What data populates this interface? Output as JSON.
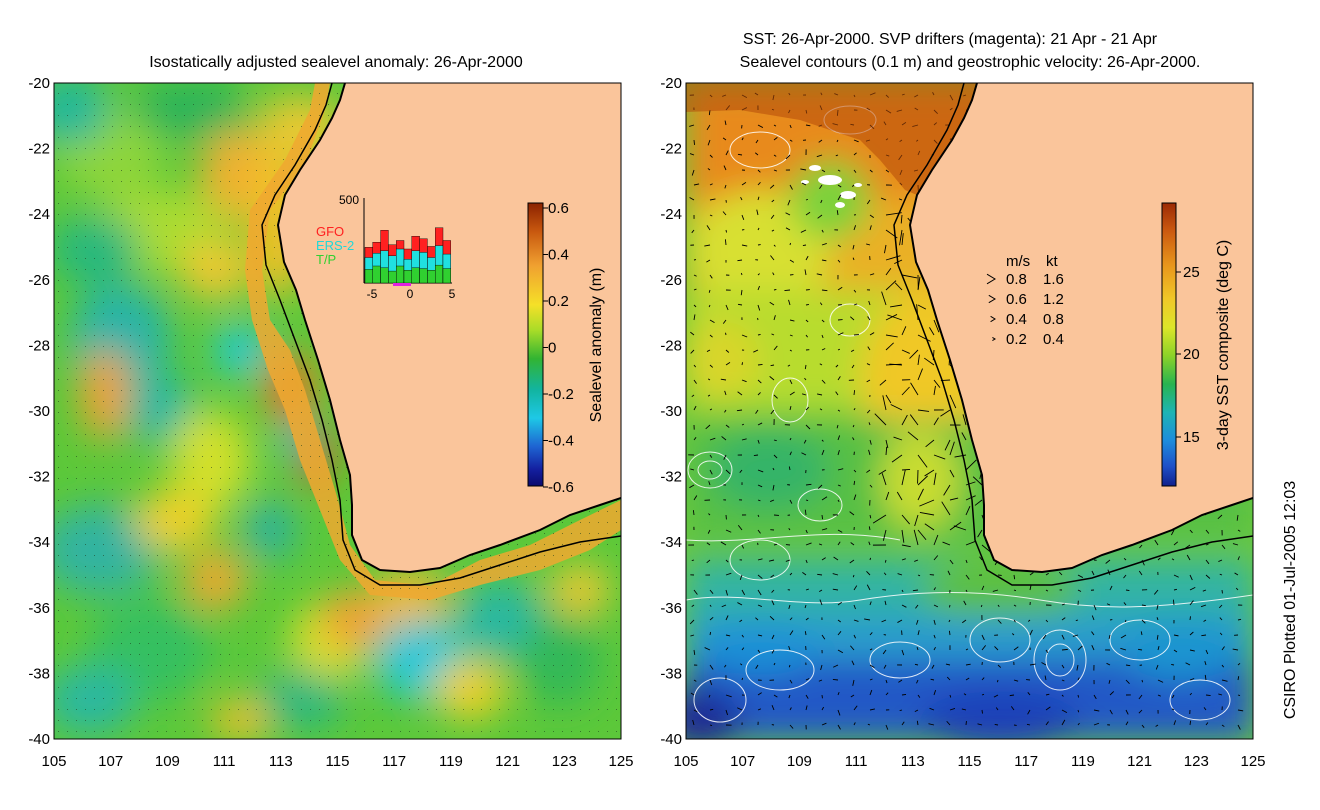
{
  "left_panel": {
    "title": "Isostatically adjusted sealevel anomaly: 26-Apr-2000",
    "colorbar": {
      "label": "Sealevel anomaly (m)",
      "ticks": [
        "0.6",
        "0.4",
        "0.2",
        "0",
        "-0.2",
        "-0.4",
        "-0.6"
      ],
      "colors": [
        "#8b2200",
        "#c8580f",
        "#f0a030",
        "#f5e028",
        "#a8dc28",
        "#32b432",
        "#12b4a0",
        "#1ec8e6",
        "#1e64d2",
        "#1420a0",
        "#0a0a6e"
      ]
    },
    "inset": {
      "ymax_label": "500",
      "legend": [
        {
          "label": "GFO",
          "color": "#ff2020"
        },
        {
          "label": "ERS-2",
          "color": "#20e0e0"
        },
        {
          "label": "T/P",
          "color": "#30d030"
        }
      ],
      "xticks": [
        "-5",
        "0",
        "5"
      ],
      "bars_total": [
        0.42,
        0.48,
        0.62,
        0.45,
        0.5,
        0.4,
        0.55,
        0.52,
        0.43,
        0.65,
        0.5
      ],
      "bars_ers": [
        0.3,
        0.35,
        0.38,
        0.32,
        0.4,
        0.28,
        0.38,
        0.36,
        0.3,
        0.44,
        0.34
      ],
      "bars_tp": [
        0.16,
        0.2,
        0.18,
        0.14,
        0.2,
        0.15,
        0.18,
        0.17,
        0.15,
        0.21,
        0.17
      ]
    }
  },
  "right_panel": {
    "title_line1": "SST: 26-Apr-2000. SVP drifters (magenta): 21 Apr - 21 Apr",
    "title_line2": "Sealevel contours (0.1 m) and geostrophic velocity: 26-Apr-2000.",
    "colorbar": {
      "label": "3-day SST composite (deg C)",
      "ticks": [
        "25",
        "20",
        "15"
      ],
      "colors": [
        "#9b2a05",
        "#cc5a10",
        "#e8961c",
        "#f0c828",
        "#dce628",
        "#8cd228",
        "#28b450",
        "#1eb4b4",
        "#1e8cdc",
        "#1e50c8",
        "#10208c"
      ]
    },
    "velocity_legend": {
      "header_ms": "m/s",
      "header_kt": "kt",
      "rows": [
        {
          "ms": "0.8",
          "kt": "1.6"
        },
        {
          "ms": "0.6",
          "kt": "1.2"
        },
        {
          "ms": "0.4",
          "kt": "0.8"
        },
        {
          "ms": "0.2",
          "kt": "0.4"
        }
      ]
    }
  },
  "axes": {
    "lat_labels": [
      "-20",
      "-22",
      "-24",
      "-26",
      "-28",
      "-30",
      "-32",
      "-34",
      "-36",
      "-38",
      "-40"
    ],
    "lon_labels": [
      "105",
      "107",
      "109",
      "111",
      "113",
      "115",
      "117",
      "119",
      "121",
      "123",
      "125"
    ]
  },
  "credit": "CSIRO Plotted 01-Jul-2005 12:03",
  "colors": {
    "land": "#fac59b",
    "coast": "#000000",
    "contour": "#ffffff"
  }
}
